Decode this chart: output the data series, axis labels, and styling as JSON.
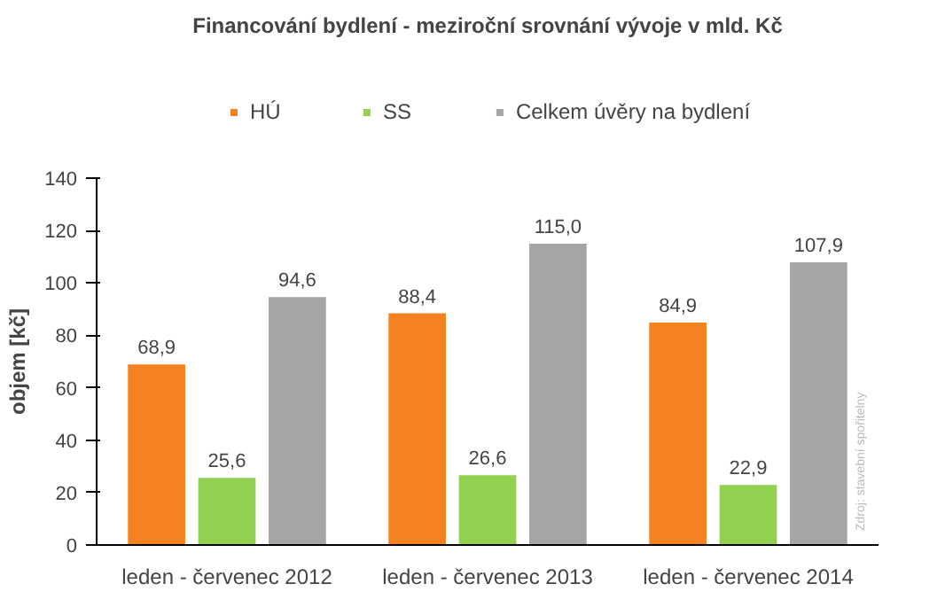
{
  "chart_data": {
    "type": "bar",
    "title": "Financování bydlení - meziroční srovnání vývoje v mld. Kč",
    "ylabel": "objem [kč]",
    "categories": [
      "leden - červenec 2012",
      "leden - červenec 2013",
      "leden - červenec 2014"
    ],
    "series": [
      {
        "name": "HÚ",
        "color": "#f58220",
        "values": [
          68.9,
          88.4,
          84.9
        ],
        "value_labels": [
          "68,9",
          "88,4",
          "84,9"
        ]
      },
      {
        "name": "SS",
        "color": "#92d050",
        "values": [
          25.6,
          26.6,
          22.9
        ],
        "value_labels": [
          "25,6",
          "26,6",
          "22,9"
        ]
      },
      {
        "name": "Celkem úvěry na bydlení",
        "color": "#a5a5a5",
        "values": [
          94.6,
          115.0,
          107.9
        ],
        "value_labels": [
          "94,6",
          "115,0",
          "107,9"
        ]
      }
    ],
    "ylim": [
      0,
      140
    ],
    "yticks": [
      0,
      20,
      40,
      60,
      80,
      100,
      120,
      140
    ],
    "grid": false,
    "legend": "top",
    "annotations": [
      "Zdroj: stavební spořitelny"
    ]
  }
}
